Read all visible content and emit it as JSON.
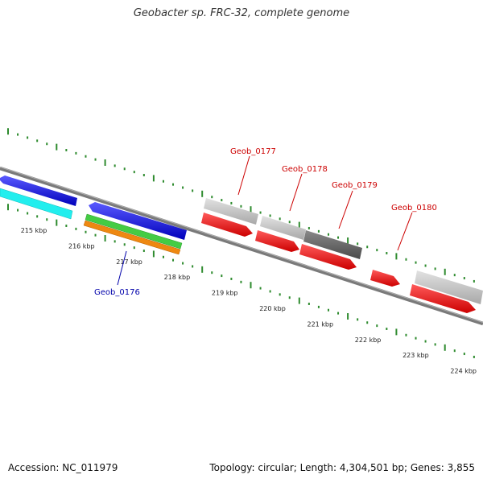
{
  "title": "Geobacter sp. FRC-32, complete genome",
  "footer": {
    "accession": "Accession: NC_011979",
    "summary": "Topology: circular; Length: 4,304,501 bp; Genes: 3,855"
  },
  "ticks": [
    "215 kbp",
    "216 kbp",
    "217 kbp",
    "218 kbp",
    "219 kbp",
    "220 kbp",
    "221 kbp",
    "222 kbp",
    "223 kbp",
    "224 kbp"
  ],
  "gene_labels": [
    {
      "text": "Geob_0176",
      "color": "#0000aa"
    },
    {
      "text": "Geob_0177",
      "color": "#cc0000"
    },
    {
      "text": "Geob_0178",
      "color": "#cc0000"
    },
    {
      "text": "Geob_0179",
      "color": "#cc0000"
    },
    {
      "text": "Geob_0180",
      "color": "#cc0000"
    }
  ],
  "colors": {
    "backbone": "#7a7a7a",
    "tick": "#2e8b2e",
    "blue": "#1010dd",
    "cyan": "#22eeee",
    "green": "#44cc44",
    "orange": "#ee8811",
    "red": "#ee1111",
    "light_gray": "#c8c8c8",
    "dark_gray": "#666666"
  }
}
